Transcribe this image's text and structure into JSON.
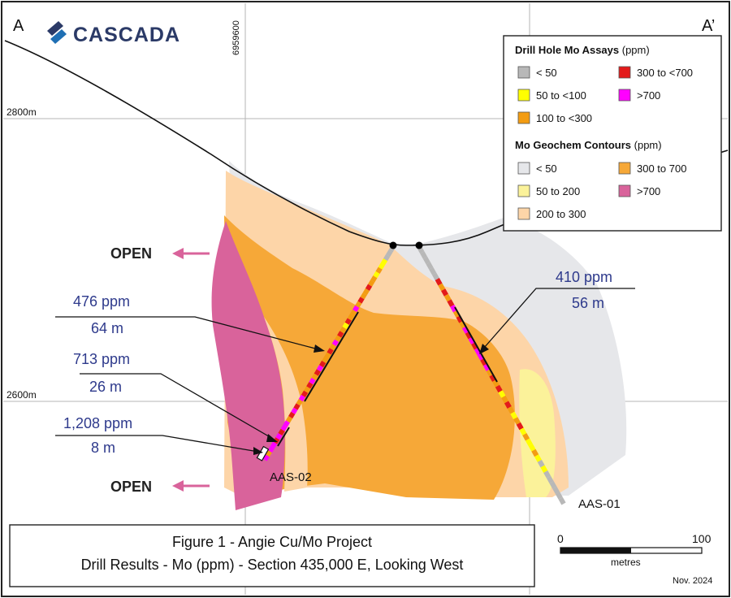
{
  "section": {
    "left_label": "A",
    "right_label": "A’",
    "northing_label": "6959600",
    "elevation_labels": [
      "2800m",
      "2600m"
    ]
  },
  "logo": {
    "text": "CASCADA",
    "brand_color": "#2b3a67"
  },
  "legend": {
    "assays_title": "Drill Hole Mo Assays",
    "assays_unit": "(ppm)",
    "assays": [
      {
        "label": "< 50",
        "color": "#b8b8b8"
      },
      {
        "label": "50 to <100",
        "color": "#ffff00"
      },
      {
        "label": "100 to <300",
        "color": "#f39c12"
      },
      {
        "label": "300 to <700",
        "color": "#e31b1b"
      },
      {
        "label": ">700",
        "color": "#ff00ff"
      }
    ],
    "contours_title": "Mo Geochem Contours",
    "contours_unit": "(ppm)",
    "contours": [
      {
        "label": "< 50",
        "color": "#e6e7ea"
      },
      {
        "label": "50 to 200",
        "color": "#fbf29a"
      },
      {
        "label": "200 to 300",
        "color": "#fdd5a8"
      },
      {
        "label": "300 to 700",
        "color": "#f6a838"
      },
      {
        "label": ">700",
        "color": "#d9639b"
      }
    ]
  },
  "annotations": {
    "open_top": "OPEN",
    "open_bottom": "OPEN",
    "hole2_a_ppm": "476 ppm",
    "hole2_a_len": "64 m",
    "hole2_b_ppm": "713 ppm",
    "hole2_b_len": "26 m",
    "hole2_c_ppm": "1,208 ppm",
    "hole2_c_len": "8 m",
    "hole1_ppm": "410 ppm",
    "hole1_len": "56 m",
    "hole1_name": "AAS-01",
    "hole2_name": "AAS-02",
    "label_color": "#2e3a8c",
    "arrow_color": "#d9639b"
  },
  "scale": {
    "start": "0",
    "end": "100",
    "unit": "metres"
  },
  "title": {
    "line1": "Figure 1 - Angie Cu/Mo Project",
    "line2": "Drill Results - Mo (ppm) - Section 435,000 E, Looking West"
  },
  "date": "Nov. 2024"
}
